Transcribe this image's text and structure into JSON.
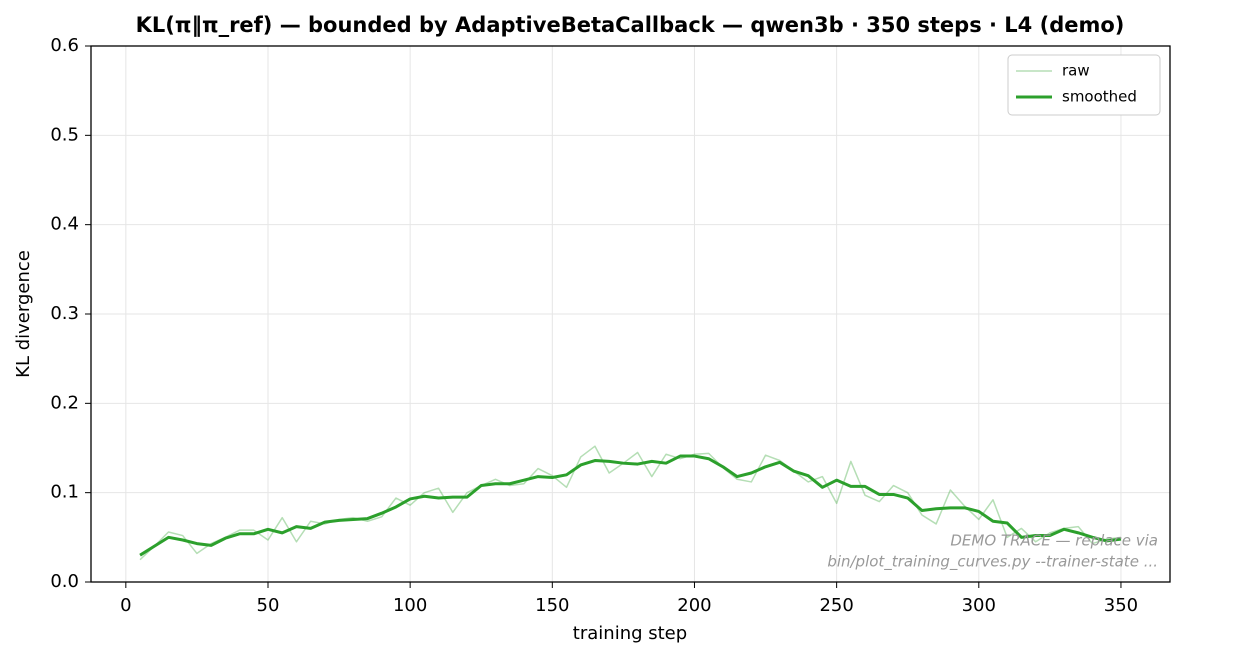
{
  "chart_data": {
    "type": "line",
    "title": "KL(π‖π_ref) — bounded by AdaptiveBetaCallback — qwen3b · 350 steps · L4 (demo)",
    "xlabel": "training step",
    "ylabel": "KL divergence",
    "annotation": [
      "DEMO TRACE — replace via",
      "bin/plot_training_curves.py --trainer-state ..."
    ],
    "x": [
      5,
      10,
      15,
      20,
      25,
      30,
      35,
      40,
      45,
      50,
      55,
      60,
      65,
      70,
      75,
      80,
      85,
      90,
      95,
      100,
      105,
      110,
      115,
      120,
      125,
      130,
      135,
      140,
      145,
      150,
      155,
      160,
      165,
      170,
      175,
      180,
      185,
      190,
      195,
      200,
      205,
      210,
      215,
      220,
      225,
      230,
      235,
      240,
      245,
      250,
      255,
      260,
      265,
      270,
      275,
      280,
      285,
      290,
      295,
      300,
      305,
      310,
      315,
      320,
      325,
      330,
      335,
      340,
      345,
      350
    ],
    "series": [
      {
        "name": "raw",
        "color": "#2ca02c",
        "opacity": 0.35,
        "width": 1.5,
        "values": [
          0.025,
          0.04,
          0.056,
          0.052,
          0.032,
          0.043,
          0.05,
          0.058,
          0.058,
          0.047,
          0.072,
          0.045,
          0.068,
          0.065,
          0.07,
          0.072,
          0.068,
          0.073,
          0.094,
          0.086,
          0.1,
          0.105,
          0.078,
          0.1,
          0.108,
          0.115,
          0.108,
          0.11,
          0.127,
          0.119,
          0.106,
          0.14,
          0.152,
          0.122,
          0.133,
          0.145,
          0.118,
          0.143,
          0.138,
          0.143,
          0.144,
          0.128,
          0.115,
          0.112,
          0.142,
          0.136,
          0.124,
          0.112,
          0.118,
          0.088,
          0.135,
          0.097,
          0.09,
          0.108,
          0.1,
          0.075,
          0.065,
          0.103,
          0.085,
          0.07,
          0.092,
          0.05,
          0.06,
          0.045,
          0.055,
          0.06,
          0.062,
          0.043,
          0.048,
          0.05
        ]
      },
      {
        "name": "smoothed",
        "color": "#2ca02c",
        "opacity": 1,
        "width": 3,
        "values": [
          0.03,
          0.04,
          0.05,
          0.047,
          0.043,
          0.041,
          0.049,
          0.054,
          0.054,
          0.059,
          0.055,
          0.062,
          0.06,
          0.067,
          0.069,
          0.07,
          0.071,
          0.077,
          0.084,
          0.093,
          0.096,
          0.094,
          0.095,
          0.095,
          0.108,
          0.11,
          0.11,
          0.114,
          0.118,
          0.117,
          0.12,
          0.131,
          0.136,
          0.135,
          0.133,
          0.132,
          0.135,
          0.133,
          0.141,
          0.141,
          0.138,
          0.129,
          0.118,
          0.122,
          0.129,
          0.134,
          0.124,
          0.119,
          0.106,
          0.114,
          0.107,
          0.107,
          0.098,
          0.098,
          0.094,
          0.08,
          0.082,
          0.083,
          0.083,
          0.079,
          0.068,
          0.066,
          0.05,
          0.052,
          0.052,
          0.059,
          0.055,
          0.05,
          0.046,
          0.048
        ]
      }
    ],
    "xlim": [
      -12.25,
      367.25
    ],
    "xticks": [
      0,
      50,
      100,
      150,
      200,
      250,
      300,
      350
    ],
    "ylim": [
      0,
      0.6
    ],
    "yticks": [
      {
        "value": 0,
        "label": "0.0"
      },
      0.1,
      0.2,
      0.3,
      0.4,
      0.5,
      0.6
    ],
    "grid": true,
    "legend": "upper right"
  }
}
